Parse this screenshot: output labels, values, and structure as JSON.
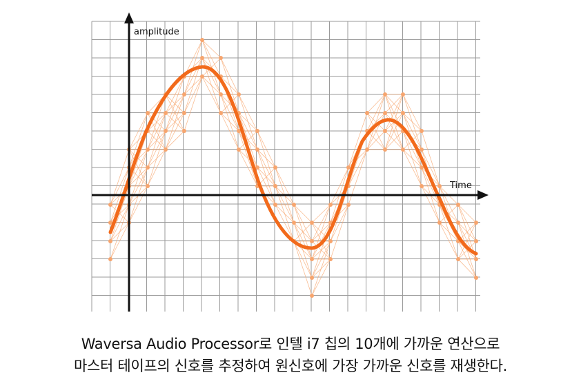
{
  "diagram": {
    "y_axis_label": "amplitude",
    "x_axis_label": "Time",
    "colors": {
      "grid": "#9a9a9a",
      "axis": "#111111",
      "curve": "#f26a1b",
      "samples": "#f7a56e"
    }
  },
  "caption": {
    "line1": "Waversa Audio Processor로 인텔 i7 칩의 10개에 가까운 연산으로",
    "line2": "마스터 테이프의 신호를 추정하여 원신호에 가장 가까운 신호를 재생한다."
  }
}
